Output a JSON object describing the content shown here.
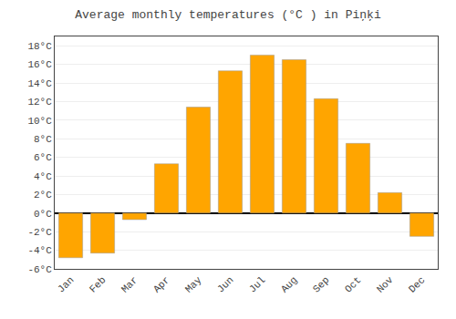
{
  "chart_data": {
    "type": "bar",
    "title": "Average monthly temperatures (°C ) in Piņķi",
    "categories": [
      "Jan",
      "Feb",
      "Mar",
      "Apr",
      "May",
      "Jun",
      "Jul",
      "Aug",
      "Sep",
      "Oct",
      "Nov",
      "Dec"
    ],
    "values": [
      -4.8,
      -4.3,
      -0.7,
      5.3,
      11.4,
      15.3,
      17.0,
      16.5,
      12.3,
      7.5,
      2.2,
      -2.5
    ],
    "color": "#FFA500",
    "ylim": [
      -6,
      19
    ],
    "yticks": [
      {
        "value": -6,
        "label": "-6°C"
      },
      {
        "value": -4,
        "label": "-4°C"
      },
      {
        "value": -2,
        "label": "-2°C"
      },
      {
        "value": 0,
        "label": "0°C"
      },
      {
        "value": 2,
        "label": "2°C"
      },
      {
        "value": 4,
        "label": "4°C"
      },
      {
        "value": 6,
        "label": "6°C"
      },
      {
        "value": 8,
        "label": "8°C"
      },
      {
        "value": 10,
        "label": "10°C"
      },
      {
        "value": 12,
        "label": "12°C"
      },
      {
        "value": 14,
        "label": "14°C"
      },
      {
        "value": 16,
        "label": "16°C"
      },
      {
        "value": 18,
        "label": "18°C"
      }
    ],
    "grid": true
  }
}
